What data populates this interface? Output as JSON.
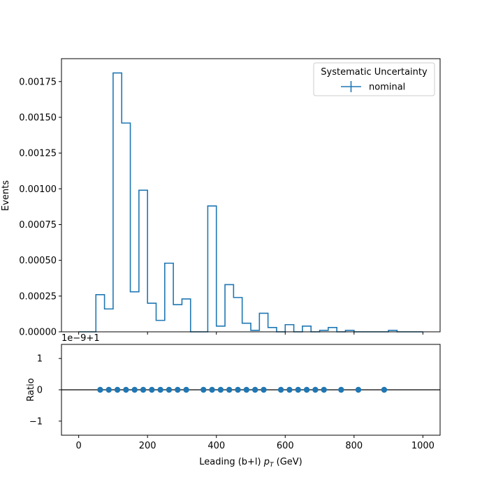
{
  "chart_data": {
    "type": "histogram",
    "legend": {
      "title": "Systematic Uncertainty",
      "entries": [
        "nominal"
      ],
      "placement": "top-right"
    },
    "series_color": "#1f77b4",
    "main_panel": {
      "ylabel": "Events",
      "xlim": [
        -50,
        1050
      ],
      "ylim": [
        0,
        0.00191
      ],
      "y_ticks": [
        0,
        0.00025,
        0.0005,
        0.00075,
        0.001,
        0.00125,
        0.0015,
        0.00175
      ],
      "y_tick_labels": [
        "0.00000",
        "0.00025",
        "0.00050",
        "0.00075",
        "0.00100",
        "0.00125",
        "0.00150",
        "0.00175"
      ],
      "x_ticks": [
        0,
        200,
        400,
        600,
        800,
        1000
      ],
      "bin_edges": [
        0,
        25,
        50,
        75,
        100,
        125,
        150,
        175,
        200,
        225,
        250,
        275,
        300,
        325,
        350,
        375,
        400,
        425,
        450,
        475,
        500,
        525,
        550,
        575,
        600,
        625,
        650,
        675,
        700,
        725,
        750,
        775,
        800,
        825,
        850,
        875,
        900,
        925,
        950,
        975,
        1000
      ],
      "values": [
        0,
        0,
        0.00026,
        0.00016,
        0.00181,
        0.00146,
        0.00028,
        0.00099,
        0.0002,
        8e-05,
        0.00048,
        0.00019,
        0.00023,
        0,
        0,
        0.00088,
        4e-05,
        0.00033,
        0.00024,
        6e-05,
        1e-05,
        0.00013,
        3e-05,
        0,
        5e-05,
        0,
        4e-05,
        0,
        1e-05,
        3e-05,
        0,
        1e-05,
        0,
        0,
        0,
        0,
        1e-05,
        0,
        0,
        0
      ]
    },
    "ratio_panel": {
      "ylabel": "Ratio",
      "offset_label": "1e−9+1",
      "ylim": [
        -1.45,
        1.45
      ],
      "y_ticks": [
        -1,
        0,
        1
      ],
      "y_tick_labels": [
        "−1",
        "0",
        "1"
      ],
      "reference_line": 0,
      "points_x": [
        62.5,
        87.5,
        112.5,
        137.5,
        162.5,
        187.5,
        212.5,
        237.5,
        262.5,
        287.5,
        312.5,
        362.5,
        387.5,
        412.5,
        437.5,
        462.5,
        487.5,
        512.5,
        537.5,
        587.5,
        612.5,
        637.5,
        662.5,
        687.5,
        712.5,
        762.5,
        812.5,
        887.5
      ],
      "points_y": 0
    },
    "x_axis": {
      "label_prefix": "Leading (b+l) ",
      "label_var": "p",
      "label_sub": "T",
      "label_suffix": " (GeV)",
      "tick_labels": [
        "0",
        "200",
        "400",
        "600",
        "800",
        "1000"
      ]
    }
  }
}
